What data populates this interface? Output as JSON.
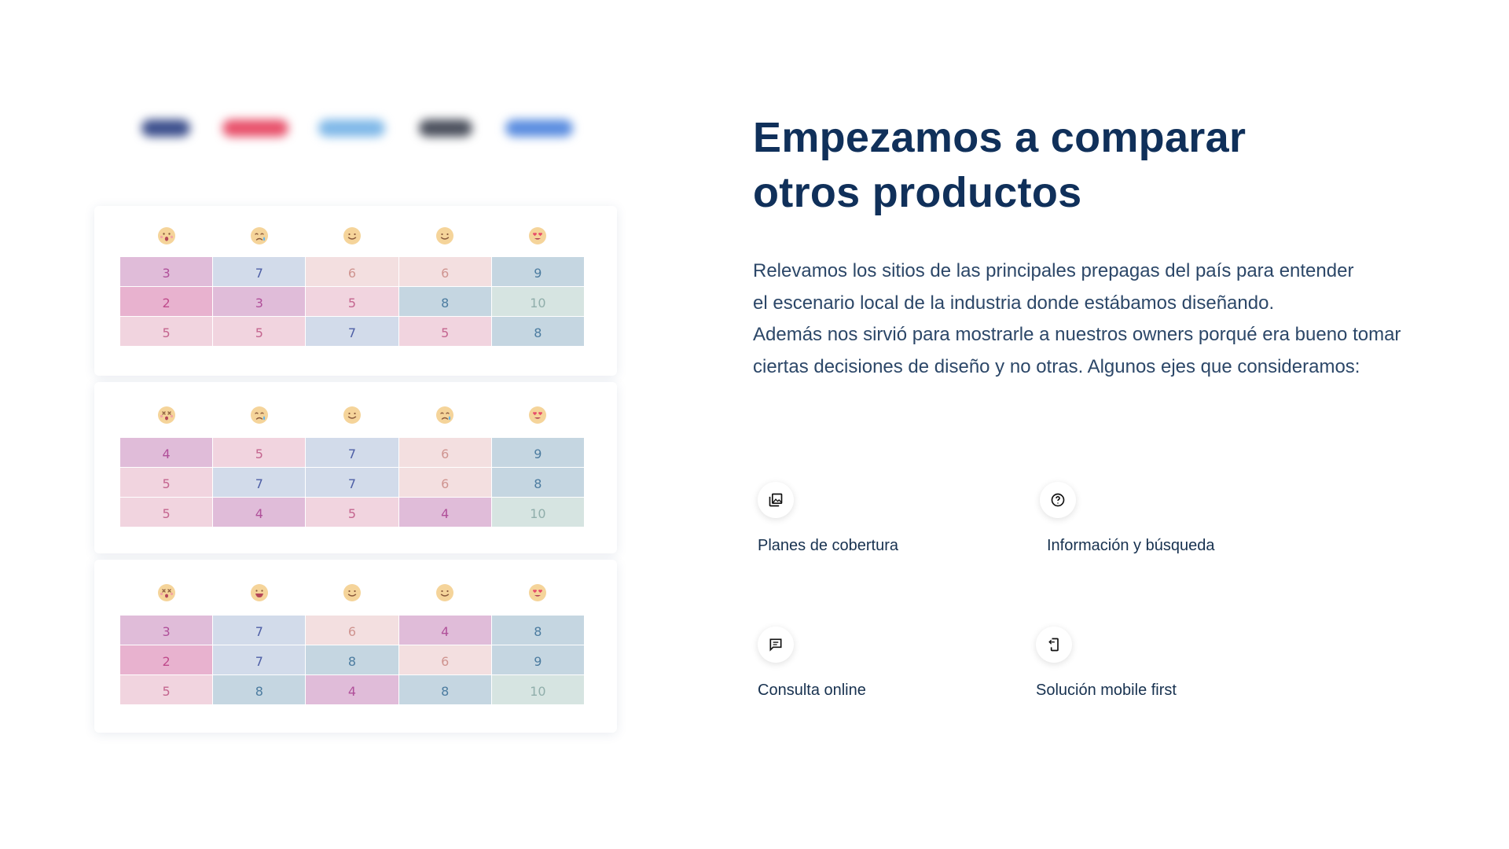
{
  "title": "Empezamos a comparar\notros productos",
  "description": "Relevamos los sitios de las principales prepagas del país para entender\nel escenario local de la industria donde estábamos diseñando.\nAdemás nos sirvió para mostrarle a nuestros owners porqué era bueno tomar\nciertas decisiones de diseño y no otras. Algunos ejes que consideramos:",
  "brand_logos": [
    {
      "color": "#3b4e8c"
    },
    {
      "color": "#e8506a"
    },
    {
      "color": "#7fb8e8"
    },
    {
      "color": "#4a4f5c"
    },
    {
      "color": "#5a8de0"
    }
  ],
  "palette": {
    "m": {
      "bg": "#e0bcd9",
      "fg": "#b0509a"
    },
    "p": {
      "bg": "#e8b2cf",
      "fg": "#c04b8c"
    },
    "l": {
      "bg": "#f1d4df",
      "fg": "#c4658f"
    },
    "s": {
      "bg": "#f3dfe0",
      "fg": "#cf9490"
    },
    "b": {
      "bg": "#d2dbea",
      "fg": "#4e5fa6"
    },
    "t": {
      "bg": "#c5d6e1",
      "fg": "#4c7ca0"
    },
    "g": {
      "bg": "#d6e4e1",
      "fg": "#90aeab"
    }
  },
  "comparison_cards": [
    {
      "emojis": [
        "shocked-face-icon",
        "crying-face-icon",
        "smiling-face-icon",
        "smiling-face-icon",
        "heart-eyes-face-icon"
      ],
      "rows": [
        [
          {
            "v": "3",
            "c": "m"
          },
          {
            "v": "7",
            "c": "b"
          },
          {
            "v": "6",
            "c": "s"
          },
          {
            "v": "6",
            "c": "s"
          },
          {
            "v": "9",
            "c": "t"
          }
        ],
        [
          {
            "v": "2",
            "c": "p"
          },
          {
            "v": "3",
            "c": "m"
          },
          {
            "v": "5",
            "c": "l"
          },
          {
            "v": "8",
            "c": "t"
          },
          {
            "v": "10",
            "c": "g"
          }
        ],
        [
          {
            "v": "5",
            "c": "l"
          },
          {
            "v": "5",
            "c": "l"
          },
          {
            "v": "7",
            "c": "b"
          },
          {
            "v": "5",
            "c": "l"
          },
          {
            "v": "8",
            "c": "t"
          }
        ]
      ]
    },
    {
      "emojis": [
        "dizzy-face-icon",
        "crying-face-icon",
        "smiling-face-icon",
        "crying-face-icon",
        "heart-eyes-face-icon"
      ],
      "rows": [
        [
          {
            "v": "4",
            "c": "m"
          },
          {
            "v": "5",
            "c": "l"
          },
          {
            "v": "7",
            "c": "b"
          },
          {
            "v": "6",
            "c": "s"
          },
          {
            "v": "9",
            "c": "t"
          }
        ],
        [
          {
            "v": "5",
            "c": "l"
          },
          {
            "v": "7",
            "c": "b"
          },
          {
            "v": "7",
            "c": "b"
          },
          {
            "v": "6",
            "c": "s"
          },
          {
            "v": "8",
            "c": "t"
          }
        ],
        [
          {
            "v": "5",
            "c": "l"
          },
          {
            "v": "4",
            "c": "m"
          },
          {
            "v": "5",
            "c": "l"
          },
          {
            "v": "4",
            "c": "m"
          },
          {
            "v": "10",
            "c": "g"
          }
        ]
      ]
    },
    {
      "emojis": [
        "dizzy-face-icon",
        "grinning-face-icon",
        "smiling-face-icon",
        "smiling-face-icon",
        "heart-eyes-face-icon"
      ],
      "rows": [
        [
          {
            "v": "3",
            "c": "m"
          },
          {
            "v": "7",
            "c": "b"
          },
          {
            "v": "6",
            "c": "s"
          },
          {
            "v": "4",
            "c": "m"
          },
          {
            "v": "8",
            "c": "t"
          }
        ],
        [
          {
            "v": "2",
            "c": "p"
          },
          {
            "v": "7",
            "c": "b"
          },
          {
            "v": "8",
            "c": "t"
          },
          {
            "v": "6",
            "c": "s"
          },
          {
            "v": "9",
            "c": "t"
          }
        ],
        [
          {
            "v": "5",
            "c": "l"
          },
          {
            "v": "8",
            "c": "t"
          },
          {
            "v": "4",
            "c": "m"
          },
          {
            "v": "8",
            "c": "t"
          },
          {
            "v": "10",
            "c": "g"
          }
        ]
      ]
    }
  ],
  "features": [
    {
      "label": "Planes de cobertura",
      "icon": "gallery-icon"
    },
    {
      "label": "Información y búsqueda",
      "icon": "help-circle-icon"
    },
    {
      "label": "Consulta online",
      "icon": "chat-icon"
    },
    {
      "label": "Solución mobile first",
      "icon": "mobile-icon"
    }
  ]
}
